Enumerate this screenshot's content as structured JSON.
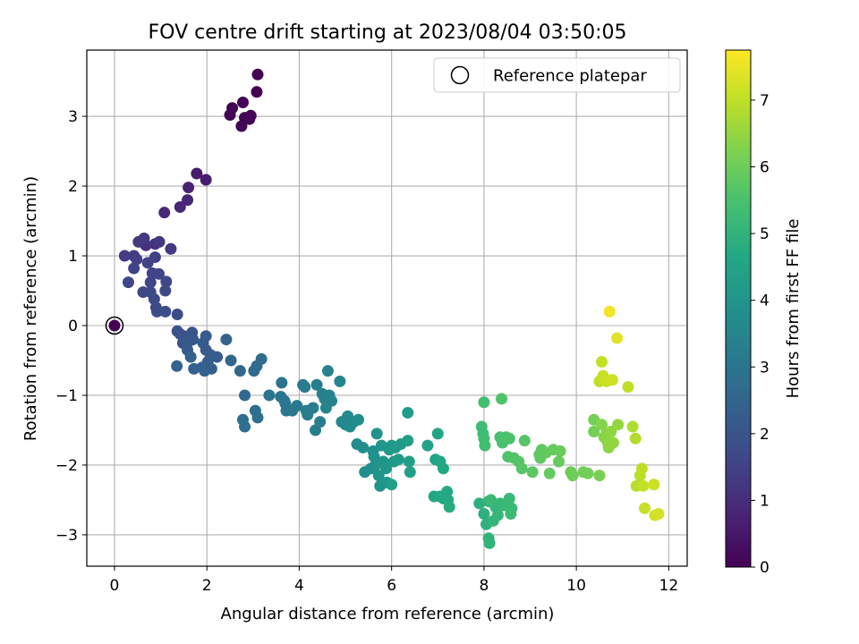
{
  "chart_data": {
    "type": "scatter",
    "title": "FOV centre drift starting at 2023/08/04 03:50:05",
    "xlabel": "Angular distance from reference (arcmin)",
    "ylabel": "Rotation from reference (arcmin)",
    "xlim": [
      -0.6,
      12.4
    ],
    "ylim": [
      -3.45,
      3.95
    ],
    "xticks": [
      0,
      2,
      4,
      6,
      8,
      10,
      12
    ],
    "yticks": [
      -3,
      -2,
      -1,
      0,
      1,
      2,
      3
    ],
    "grid": true,
    "legend": {
      "position": "top-right",
      "entries": [
        "Reference platepar"
      ]
    },
    "reference_point": {
      "x": 0,
      "y": 0
    },
    "colorbar": {
      "label": "Hours from first FF file",
      "min": 0,
      "max": 7.75,
      "ticks": [
        0,
        1,
        2,
        3,
        4,
        5,
        6,
        7
      ],
      "colormap": "viridis"
    },
    "series": [
      {
        "x": 2.55,
        "y": 3.12,
        "t": 0.02
      },
      {
        "x": 2.5,
        "y": 3.02,
        "t": 0.05
      },
      {
        "x": 2.78,
        "y": 3.2,
        "t": 0.03
      },
      {
        "x": 2.82,
        "y": 2.98,
        "t": 0.06
      },
      {
        "x": 2.75,
        "y": 2.86,
        "t": 0.08
      },
      {
        "x": 2.92,
        "y": 2.96,
        "t": 0.04
      },
      {
        "x": 2.95,
        "y": 3.01,
        "t": 0.1
      },
      {
        "x": 3.08,
        "y": 3.35,
        "t": 0.01
      },
      {
        "x": 3.1,
        "y": 3.6,
        "t": 0.0
      },
      {
        "x": 1.78,
        "y": 2.18,
        "t": 0.6
      },
      {
        "x": 1.98,
        "y": 2.09,
        "t": 0.65
      },
      {
        "x": 1.6,
        "y": 1.98,
        "t": 0.75
      },
      {
        "x": 1.58,
        "y": 1.8,
        "t": 0.8
      },
      {
        "x": 1.42,
        "y": 1.7,
        "t": 0.85
      },
      {
        "x": 1.08,
        "y": 1.62,
        "t": 0.9
      },
      {
        "x": 0.62,
        "y": 1.2,
        "t": 1.05
      },
      {
        "x": 0.68,
        "y": 1.15,
        "t": 1.1
      },
      {
        "x": 0.88,
        "y": 1.17,
        "t": 1.15
      },
      {
        "x": 0.97,
        "y": 1.2,
        "t": 1.2
      },
      {
        "x": 1.22,
        "y": 1.1,
        "t": 1.25
      },
      {
        "x": 0.52,
        "y": 1.2,
        "t": 1.3
      },
      {
        "x": 0.64,
        "y": 1.25,
        "t": 1.3
      },
      {
        "x": 0.22,
        "y": 1.0,
        "t": 1.35
      },
      {
        "x": 0.42,
        "y": 1.0,
        "t": 1.4
      },
      {
        "x": 0.48,
        "y": 0.95,
        "t": 1.42
      },
      {
        "x": 0.88,
        "y": 0.98,
        "t": 1.45
      },
      {
        "x": 0.42,
        "y": 0.82,
        "t": 1.5
      },
      {
        "x": 0.72,
        "y": 0.9,
        "t": 1.52
      },
      {
        "x": 0.82,
        "y": 0.75,
        "t": 1.55
      },
      {
        "x": 0.96,
        "y": 0.74,
        "t": 1.58
      },
      {
        "x": 0.78,
        "y": 0.62,
        "t": 1.6
      },
      {
        "x": 1.12,
        "y": 0.63,
        "t": 1.62
      },
      {
        "x": 0.3,
        "y": 0.62,
        "t": 1.63
      },
      {
        "x": 0.62,
        "y": 0.48,
        "t": 1.65
      },
      {
        "x": 0.78,
        "y": 0.48,
        "t": 1.68
      },
      {
        "x": 1.1,
        "y": 0.5,
        "t": 1.7
      },
      {
        "x": 0.86,
        "y": 0.38,
        "t": 1.72
      },
      {
        "x": 0.9,
        "y": 0.26,
        "t": 1.75
      },
      {
        "x": 0.92,
        "y": 0.2,
        "t": 1.78
      },
      {
        "x": 1.1,
        "y": 0.2,
        "t": 1.8
      },
      {
        "x": 1.36,
        "y": 0.16,
        "t": 1.82
      },
      {
        "x": 1.36,
        "y": -0.08,
        "t": 1.95
      },
      {
        "x": 1.42,
        "y": -0.12,
        "t": 1.97
      },
      {
        "x": 1.5,
        "y": -0.15,
        "t": 2.0
      },
      {
        "x": 1.68,
        "y": -0.1,
        "t": 2.02
      },
      {
        "x": 1.62,
        "y": -0.22,
        "t": 2.05
      },
      {
        "x": 1.48,
        "y": -0.25,
        "t": 2.07
      },
      {
        "x": 1.55,
        "y": -0.28,
        "t": 2.1
      },
      {
        "x": 1.7,
        "y": -0.2,
        "t": 2.12
      },
      {
        "x": 1.58,
        "y": -0.35,
        "t": 2.15
      },
      {
        "x": 1.92,
        "y": -0.25,
        "t": 2.18
      },
      {
        "x": 1.98,
        "y": -0.15,
        "t": 2.2
      },
      {
        "x": 1.98,
        "y": -0.35,
        "t": 2.22
      },
      {
        "x": 2.08,
        "y": -0.42,
        "t": 2.25
      },
      {
        "x": 2.22,
        "y": -0.45,
        "t": 2.28
      },
      {
        "x": 2.02,
        "y": -0.52,
        "t": 2.3
      },
      {
        "x": 1.9,
        "y": -0.6,
        "t": 2.33
      },
      {
        "x": 2.1,
        "y": -0.62,
        "t": 2.35
      },
      {
        "x": 1.72,
        "y": -0.62,
        "t": 2.38
      },
      {
        "x": 1.95,
        "y": -0.65,
        "t": 2.4
      },
      {
        "x": 1.65,
        "y": -0.45,
        "t": 2.42
      },
      {
        "x": 1.35,
        "y": -0.58,
        "t": 2.45
      },
      {
        "x": 2.42,
        "y": -0.2,
        "t": 2.5
      },
      {
        "x": 2.52,
        "y": -0.5,
        "t": 2.55
      },
      {
        "x": 2.72,
        "y": -0.65,
        "t": 2.6
      },
      {
        "x": 2.82,
        "y": -1.0,
        "t": 2.65
      },
      {
        "x": 3.02,
        "y": -0.65,
        "t": 2.7
      },
      {
        "x": 3.08,
        "y": -0.58,
        "t": 2.72
      },
      {
        "x": 3.18,
        "y": -0.48,
        "t": 2.75
      },
      {
        "x": 2.78,
        "y": -1.35,
        "t": 2.78
      },
      {
        "x": 2.82,
        "y": -1.45,
        "t": 2.8
      },
      {
        "x": 3.05,
        "y": -1.22,
        "t": 2.82
      },
      {
        "x": 3.1,
        "y": -1.32,
        "t": 2.85
      },
      {
        "x": 3.35,
        "y": -1.0,
        "t": 2.9
      },
      {
        "x": 3.62,
        "y": -0.82,
        "t": 2.95
      },
      {
        "x": 3.6,
        "y": -1.02,
        "t": 3.0
      },
      {
        "x": 3.68,
        "y": -1.08,
        "t": 3.02
      },
      {
        "x": 3.7,
        "y": -1.12,
        "t": 3.05
      },
      {
        "x": 3.72,
        "y": -1.22,
        "t": 3.08
      },
      {
        "x": 3.85,
        "y": -1.22,
        "t": 3.1
      },
      {
        "x": 3.95,
        "y": -1.15,
        "t": 3.12
      },
      {
        "x": 4.08,
        "y": -0.85,
        "t": 3.15
      },
      {
        "x": 4.12,
        "y": -0.88,
        "t": 3.18
      },
      {
        "x": 4.15,
        "y": -1.22,
        "t": 3.2
      },
      {
        "x": 4.18,
        "y": -1.28,
        "t": 3.22
      },
      {
        "x": 4.3,
        "y": -1.18,
        "t": 3.25
      },
      {
        "x": 4.35,
        "y": -1.5,
        "t": 3.28
      },
      {
        "x": 4.45,
        "y": -1.38,
        "t": 3.3
      },
      {
        "x": 4.38,
        "y": -0.85,
        "t": 3.33
      },
      {
        "x": 4.5,
        "y": -0.98,
        "t": 3.35
      },
      {
        "x": 4.55,
        "y": -1.05,
        "t": 3.38
      },
      {
        "x": 4.62,
        "y": -0.65,
        "t": 3.4
      },
      {
        "x": 4.65,
        "y": -1.0,
        "t": 3.42
      },
      {
        "x": 4.7,
        "y": -1.08,
        "t": 3.45
      },
      {
        "x": 4.88,
        "y": -0.8,
        "t": 3.48
      },
      {
        "x": 4.58,
        "y": -1.18,
        "t": 3.5
      },
      {
        "x": 4.92,
        "y": -1.38,
        "t": 3.6
      },
      {
        "x": 5.0,
        "y": -1.42,
        "t": 3.62
      },
      {
        "x": 5.05,
        "y": -1.3,
        "t": 3.65
      },
      {
        "x": 5.1,
        "y": -1.45,
        "t": 3.68
      },
      {
        "x": 5.18,
        "y": -1.38,
        "t": 3.7
      },
      {
        "x": 5.28,
        "y": -1.35,
        "t": 3.72
      },
      {
        "x": 5.25,
        "y": -1.7,
        "t": 3.75
      },
      {
        "x": 5.38,
        "y": -1.75,
        "t": 3.78
      },
      {
        "x": 5.42,
        "y": -2.1,
        "t": 3.8
      },
      {
        "x": 5.55,
        "y": -2.05,
        "t": 3.82
      },
      {
        "x": 5.6,
        "y": -1.8,
        "t": 3.85
      },
      {
        "x": 5.62,
        "y": -1.88,
        "t": 3.88
      },
      {
        "x": 5.68,
        "y": -1.55,
        "t": 3.9
      },
      {
        "x": 5.65,
        "y": -2.0,
        "t": 3.92
      },
      {
        "x": 5.72,
        "y": -2.15,
        "t": 3.95
      },
      {
        "x": 5.75,
        "y": -2.3,
        "t": 3.97
      },
      {
        "x": 5.82,
        "y": -1.95,
        "t": 4.0
      },
      {
        "x": 5.78,
        "y": -1.72,
        "t": 4.02
      },
      {
        "x": 5.88,
        "y": -2.05,
        "t": 4.05
      },
      {
        "x": 5.9,
        "y": -2.25,
        "t": 4.08
      },
      {
        "x": 5.95,
        "y": -1.78,
        "t": 4.1
      },
      {
        "x": 6.0,
        "y": -1.72,
        "t": 4.12
      },
      {
        "x": 6.05,
        "y": -1.95,
        "t": 4.15
      },
      {
        "x": 6.08,
        "y": -1.75,
        "t": 4.18
      },
      {
        "x": 6.15,
        "y": -1.92,
        "t": 4.2
      },
      {
        "x": 6.2,
        "y": -1.7,
        "t": 4.22
      },
      {
        "x": 6.35,
        "y": -1.25,
        "t": 4.25
      },
      {
        "x": 6.35,
        "y": -1.65,
        "t": 4.28
      },
      {
        "x": 6.38,
        "y": -1.95,
        "t": 4.3
      },
      {
        "x": 6.4,
        "y": -2.1,
        "t": 4.33
      },
      {
        "x": 6.0,
        "y": -2.28,
        "t": 4.35
      },
      {
        "x": 6.78,
        "y": -1.72,
        "t": 4.45
      },
      {
        "x": 6.95,
        "y": -1.92,
        "t": 4.5
      },
      {
        "x": 7.0,
        "y": -1.55,
        "t": 4.55
      },
      {
        "x": 7.05,
        "y": -1.95,
        "t": 4.58
      },
      {
        "x": 7.12,
        "y": -2.05,
        "t": 4.6
      },
      {
        "x": 6.92,
        "y": -2.45,
        "t": 4.62
      },
      {
        "x": 7.05,
        "y": -2.45,
        "t": 4.65
      },
      {
        "x": 7.12,
        "y": -2.48,
        "t": 4.68
      },
      {
        "x": 7.2,
        "y": -2.38,
        "t": 4.7
      },
      {
        "x": 7.22,
        "y": -2.5,
        "t": 4.72
      },
      {
        "x": 7.25,
        "y": -2.6,
        "t": 4.75
      },
      {
        "x": 7.9,
        "y": -2.55,
        "t": 4.9
      },
      {
        "x": 8.0,
        "y": -2.7,
        "t": 4.92
      },
      {
        "x": 8.05,
        "y": -2.85,
        "t": 4.95
      },
      {
        "x": 8.1,
        "y": -2.52,
        "t": 4.98
      },
      {
        "x": 8.1,
        "y": -3.05,
        "t": 5.0
      },
      {
        "x": 8.12,
        "y": -3.12,
        "t": 5.02
      },
      {
        "x": 8.2,
        "y": -2.8,
        "t": 5.05
      },
      {
        "x": 8.25,
        "y": -2.6,
        "t": 5.08
      },
      {
        "x": 8.3,
        "y": -2.72,
        "t": 5.1
      },
      {
        "x": 8.35,
        "y": -2.55,
        "t": 5.12
      },
      {
        "x": 8.42,
        "y": -2.58,
        "t": 5.15
      },
      {
        "x": 8.55,
        "y": -2.48,
        "t": 5.18
      },
      {
        "x": 8.6,
        "y": -2.62,
        "t": 5.2
      },
      {
        "x": 8.58,
        "y": -2.7,
        "t": 5.22
      },
      {
        "x": 8.15,
        "y": -2.5,
        "t": 5.25
      },
      {
        "x": 7.95,
        "y": -1.45,
        "t": 5.3
      },
      {
        "x": 7.98,
        "y": -1.55,
        "t": 5.32
      },
      {
        "x": 8.0,
        "y": -1.62,
        "t": 5.35
      },
      {
        "x": 8.02,
        "y": -1.72,
        "t": 5.38
      },
      {
        "x": 8.0,
        "y": -1.1,
        "t": 5.4
      },
      {
        "x": 8.35,
        "y": -1.6,
        "t": 5.45
      },
      {
        "x": 8.4,
        "y": -1.68,
        "t": 5.48
      },
      {
        "x": 8.48,
        "y": -1.6,
        "t": 5.5
      },
      {
        "x": 8.55,
        "y": -1.62,
        "t": 5.52
      },
      {
        "x": 8.38,
        "y": -1.05,
        "t": 5.55
      },
      {
        "x": 8.52,
        "y": -1.88,
        "t": 5.6
      },
      {
        "x": 8.65,
        "y": -1.9,
        "t": 5.62
      },
      {
        "x": 8.75,
        "y": -1.95,
        "t": 5.65
      },
      {
        "x": 8.82,
        "y": -2.05,
        "t": 5.68
      },
      {
        "x": 8.88,
        "y": -1.65,
        "t": 5.7
      },
      {
        "x": 9.05,
        "y": -2.1,
        "t": 5.75
      },
      {
        "x": 9.2,
        "y": -1.85,
        "t": 5.78
      },
      {
        "x": 9.25,
        "y": -1.78,
        "t": 5.8
      },
      {
        "x": 9.22,
        "y": -1.9,
        "t": 5.82
      },
      {
        "x": 9.35,
        "y": -1.82,
        "t": 5.85
      },
      {
        "x": 9.42,
        "y": -2.12,
        "t": 5.88
      },
      {
        "x": 9.5,
        "y": -1.78,
        "t": 5.9
      },
      {
        "x": 9.62,
        "y": -1.95,
        "t": 5.92
      },
      {
        "x": 9.65,
        "y": -1.8,
        "t": 5.95
      },
      {
        "x": 9.88,
        "y": -2.1,
        "t": 6.0
      },
      {
        "x": 9.92,
        "y": -2.15,
        "t": 6.02
      },
      {
        "x": 10.15,
        "y": -2.1,
        "t": 6.05
      },
      {
        "x": 10.25,
        "y": -2.12,
        "t": 6.08
      },
      {
        "x": 10.38,
        "y": -1.35,
        "t": 6.1
      },
      {
        "x": 10.38,
        "y": -1.52,
        "t": 6.12
      },
      {
        "x": 10.5,
        "y": -2.15,
        "t": 6.15
      },
      {
        "x": 10.55,
        "y": -1.42,
        "t": 6.3
      },
      {
        "x": 10.6,
        "y": -1.6,
        "t": 6.35
      },
      {
        "x": 10.65,
        "y": -1.55,
        "t": 6.38
      },
      {
        "x": 10.68,
        "y": -1.68,
        "t": 6.4
      },
      {
        "x": 10.7,
        "y": -1.75,
        "t": 6.42
      },
      {
        "x": 10.75,
        "y": -1.52,
        "t": 6.45
      },
      {
        "x": 10.8,
        "y": -1.68,
        "t": 6.48
      },
      {
        "x": 10.9,
        "y": -1.42,
        "t": 6.5
      },
      {
        "x": 10.5,
        "y": -0.8,
        "t": 7.0
      },
      {
        "x": 10.55,
        "y": -0.52,
        "t": 7.05
      },
      {
        "x": 10.58,
        "y": -0.72,
        "t": 7.1
      },
      {
        "x": 10.65,
        "y": -0.8,
        "t": 7.15
      },
      {
        "x": 10.78,
        "y": -0.78,
        "t": 7.18
      },
      {
        "x": 10.88,
        "y": -0.18,
        "t": 7.4
      },
      {
        "x": 10.72,
        "y": 0.2,
        "t": 7.6
      },
      {
        "x": 11.12,
        "y": -0.88,
        "t": 7.0
      },
      {
        "x": 11.22,
        "y": -1.45,
        "t": 6.8
      },
      {
        "x": 11.28,
        "y": -1.62,
        "t": 6.85
      },
      {
        "x": 11.3,
        "y": -2.3,
        "t": 6.9
      },
      {
        "x": 11.38,
        "y": -2.15,
        "t": 6.95
      },
      {
        "x": 11.42,
        "y": -2.05,
        "t": 7.0
      },
      {
        "x": 11.45,
        "y": -2.3,
        "t": 7.05
      },
      {
        "x": 11.48,
        "y": -2.62,
        "t": 7.1
      },
      {
        "x": 11.68,
        "y": -2.28,
        "t": 7.15
      },
      {
        "x": 11.7,
        "y": -2.72,
        "t": 7.2
      },
      {
        "x": 11.78,
        "y": -2.7,
        "t": 7.25
      }
    ]
  }
}
